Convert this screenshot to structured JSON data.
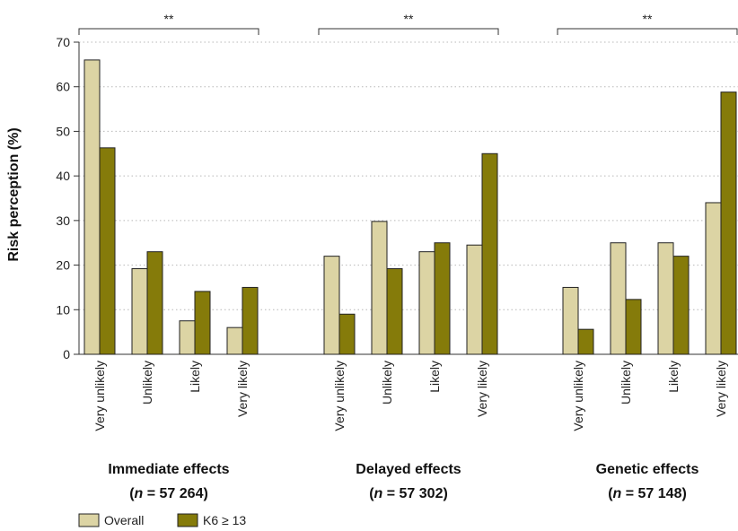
{
  "chart_data": {
    "type": "bar",
    "ylabel": "Risk perception (%)",
    "ylim": [
      0,
      70
    ],
    "yticks": [
      0,
      10,
      20,
      30,
      40,
      50,
      60,
      70
    ],
    "grid": "horizontal-dotted",
    "legend_placement": "bottom-left",
    "colors": {
      "Overall": "#dcd4a4",
      "K6 ≥ 13": "#857b0a"
    },
    "groups": [
      {
        "title": "Immediate effects",
        "n_prefix": "(",
        "n_var": "n",
        "n_eq": " = ",
        "n_value": "57 264",
        "n_suffix": ")",
        "significance": "**",
        "categories": [
          "Very unlikely",
          "Unlikely",
          "Likely",
          "Very likely"
        ],
        "series": [
          {
            "name": "Overall",
            "values": [
              66,
              19.2,
              7.5,
              6
            ]
          },
          {
            "name": "K6 ≥ 13",
            "values": [
              46.3,
              23,
              14.1,
              15
            ]
          }
        ]
      },
      {
        "title": "Delayed effects",
        "n_prefix": "(",
        "n_var": "n",
        "n_eq": " = ",
        "n_value": "57 302",
        "n_suffix": ")",
        "significance": "**",
        "categories": [
          "Very unlikely",
          "Unlikely",
          "Likely",
          "Very likely"
        ],
        "series": [
          {
            "name": "Overall",
            "values": [
              22,
              29.8,
              23,
              24.5
            ]
          },
          {
            "name": "K6 ≥ 13",
            "values": [
              9,
              19.2,
              25,
              45
            ]
          }
        ]
      },
      {
        "title": "Genetic effects",
        "n_prefix": "(",
        "n_var": "n",
        "n_eq": " = ",
        "n_value": "57 148",
        "n_suffix": ")",
        "significance": "**",
        "categories": [
          "Very unlikely",
          "Unlikely",
          "Likely",
          "Very likely"
        ],
        "series": [
          {
            "name": "Overall",
            "values": [
              15,
              25,
              25,
              34
            ]
          },
          {
            "name": "K6 ≥ 13",
            "values": [
              5.6,
              12.3,
              22,
              58.8
            ]
          }
        ]
      }
    ],
    "legend": [
      "Overall",
      "K6 ≥ 13"
    ]
  }
}
